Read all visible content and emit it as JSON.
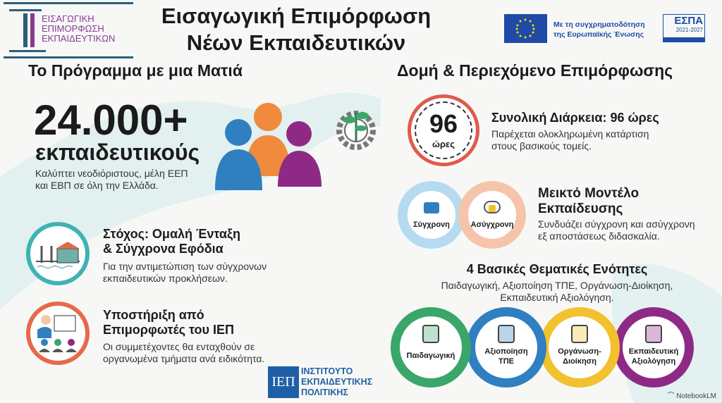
{
  "logo": {
    "lines": [
      "ΕΙΣΑΓΩΓΙΚΗ",
      "ΕΠΙΜΟΡΦΩΣΗ",
      "ΕΚΠΑΙΔΕΥΤΙΚΩΝ"
    ]
  },
  "header": {
    "title_line1": "Εισαγωγική Επιμόρφωση",
    "title_line2": "Νέων Εκπαιδευτικών",
    "eu_text_line1": "Με τη συγχρηματοδότηση",
    "eu_text_line2": "της Ευρωπαϊκής Ένωσης",
    "espa": "ΕΣΠΑ",
    "espa_years": "2021-2027"
  },
  "left": {
    "heading": "Το Πρόγραμμα με μια Ματιά",
    "stat": "24.000+",
    "stat_unit": "εκπαιδευτικούς",
    "stat_desc_1": "Καλύπτει νεοδιόριστους, μέλη ΕΕΠ",
    "stat_desc_2": "και ΕΒΠ σε όλη την Ελλάδα.",
    "goal_title_1": "Στόχος: Ομαλή Ένταξη",
    "goal_title_2": "& Σύγχρονα Εφόδια",
    "goal_desc_1": "Για την αντιμετώπιση των σύγχρονων",
    "goal_desc_2": "εκπαιδευτικών προκλήσεων.",
    "support_title_1": "Υποστήριξη από",
    "support_title_2": "Επιμορφωτές του ΙΕΠ",
    "support_desc_1": "Οι συμμετέχοντες θα ενταχθούν σε",
    "support_desc_2": "οργανωμένα τμήματα ανά ειδικότητα."
  },
  "iep": {
    "mark": "ΙΕΠ",
    "lines": [
      "ΙΝΣΤΙΤΟΥΤΟ",
      "ΕΚΠΑΙΔΕΥΤΙΚΗΣ",
      "ΠΟΛΙΤΙΚΗΣ"
    ]
  },
  "right": {
    "heading": "Δομή & Περιεχόμενο Επιμόρφωσης",
    "clock_value": "96",
    "clock_unit": "ώρες",
    "duration_title": "Συνολική Διάρκεια: 96 ώρες",
    "duration_desc_1": "Παρέχεται ολοκληρωμένη κατάρτιση",
    "duration_desc_2": "στους βασικούς τομείς.",
    "sync": "Σύγχρονη",
    "async": "Ασύγχρονη",
    "mixed_title_1": "Μεικτό Μοντέλο",
    "mixed_title_2": "Εκπαίδευσης",
    "mixed_desc_1": "Συνδυάζει σύγχρονη και ασύγχρονη",
    "mixed_desc_2": "εξ αποστάσεως διδασκαλία.",
    "modules_title": "4 Βασικές Θεματικές Ενότητες",
    "modules_desc_1": "Παιδαγωγική, Αξιοποίηση ΤΠΕ, Οργάνωση-Διοίκηση,",
    "modules_desc_2": "Εκπαιδευτική Αξιολόγηση.",
    "modules": [
      {
        "l1": "Παιδαγωγική",
        "l2": "",
        "color": "#3aa66a",
        "icon": "brain-icon"
      },
      {
        "l1": "Αξιοποίηση",
        "l2": "ΤΠΕ",
        "color": "#2f7fc1",
        "icon": "tablet-wifi-icon"
      },
      {
        "l1": "Οργάνωση-",
        "l2": "Διοίκηση",
        "color": "#f2c12e",
        "icon": "handshake-building-icon"
      },
      {
        "l1": "Εκπαιδευτική",
        "l2": "Αξιολόγηση",
        "color": "#8e2a86",
        "icon": "clipboard-check-icon"
      }
    ]
  },
  "watermark": "NotebookLM",
  "colors": {
    "purple": "#8b3a93",
    "navy": "#2c5f7a",
    "iep_blue": "#1f5fa6",
    "clock_red": "#e05a4e",
    "teal": "#3fb3b3",
    "orange": "#e66a4a"
  }
}
